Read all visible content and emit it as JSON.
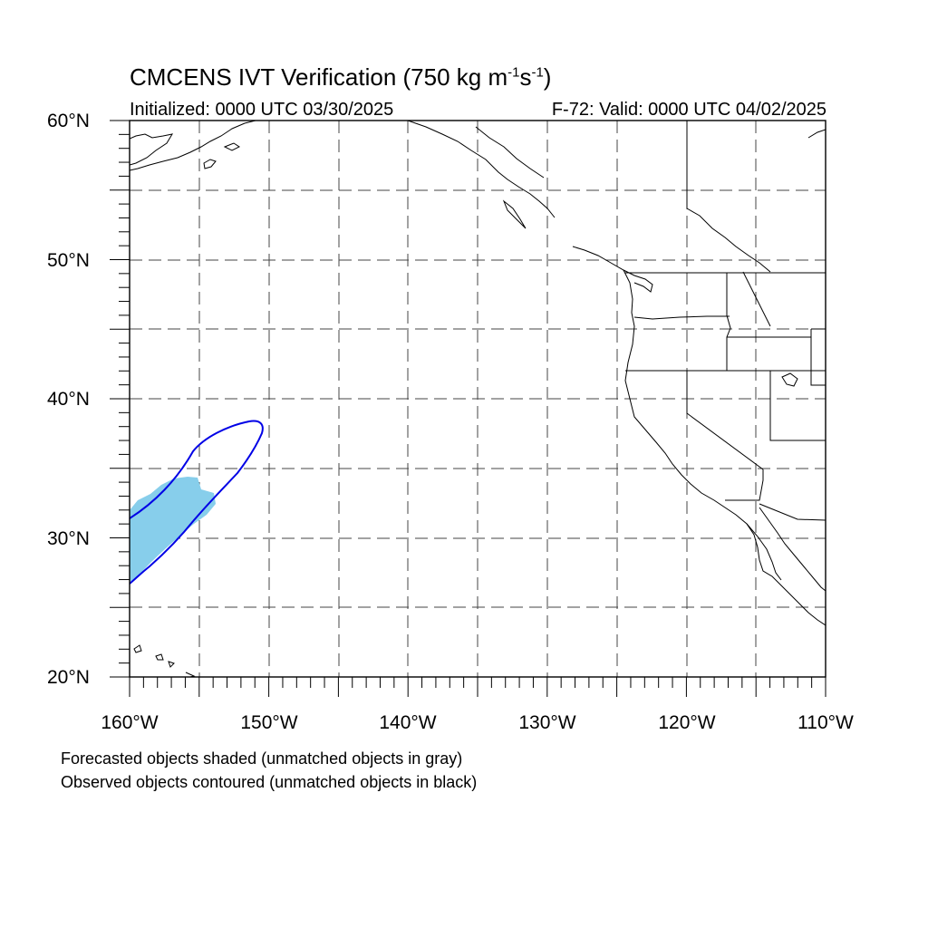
{
  "title": {
    "main": "CMCENS IVT Verification (750 kg m",
    "sup1": "-1",
    "mid": "s",
    "sup2": "-1",
    "end": ")"
  },
  "subtitle": {
    "left": "Initialized: 0000 UTC 03/30/2025",
    "right": "F-72: Valid: 0000 UTC 04/02/2025"
  },
  "lat_labels": [
    "60°N",
    "50°N",
    "40°N",
    "30°N",
    "20°N"
  ],
  "lon_labels": [
    "160°W",
    "150°W",
    "140°W",
    "130°W",
    "120°W",
    "110°W"
  ],
  "notes": [
    "Forecasted objects shaded (unmatched objects in gray)",
    "Observed objects contoured (unmatched objects in black)"
  ],
  "map_extent": {
    "lon": [
      -160,
      -110
    ],
    "lat": [
      20,
      60
    ]
  },
  "colors": {
    "forecast_fill": "#87ceeb",
    "observed_contour": "#0000e6",
    "grid": "#444444"
  }
}
